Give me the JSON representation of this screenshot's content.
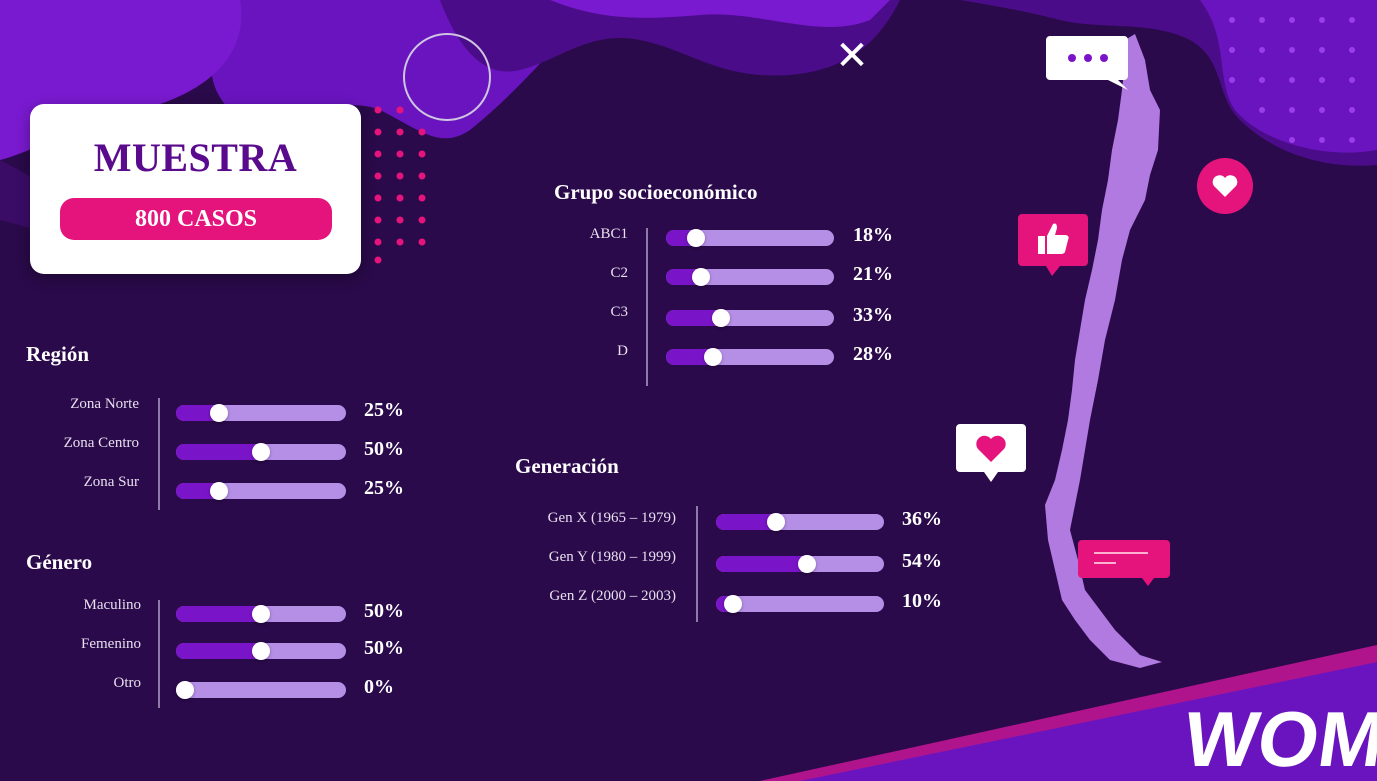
{
  "close_symbol": "✕",
  "sample": {
    "title": "MUESTRA",
    "count": "800 CASOS"
  },
  "region": {
    "title": "Región",
    "rows": [
      {
        "label": "Zona Norte",
        "pct": "25%",
        "value": 0.25
      },
      {
        "label": "Zona Centro",
        "pct": "50%",
        "value": 0.5
      },
      {
        "label": "Zona Sur",
        "pct": "25%",
        "value": 0.25
      }
    ]
  },
  "genero": {
    "title": "Género",
    "rows": [
      {
        "label": "Maculino",
        "pct": "50%",
        "value": 0.5
      },
      {
        "label": "Femenino",
        "pct": "50%",
        "value": 0.5
      },
      {
        "label": "Otro",
        "pct": "0%",
        "value": 0.0
      }
    ]
  },
  "gse": {
    "title": "Grupo socioeconómico",
    "rows": [
      {
        "label": "ABC1",
        "pct": "18%",
        "value": 0.18
      },
      {
        "label": "C2",
        "pct": "21%",
        "value": 0.21
      },
      {
        "label": "C3",
        "pct": "33%",
        "value": 0.33
      },
      {
        "label": "D",
        "pct": "28%",
        "value": 0.28
      }
    ]
  },
  "generacion": {
    "title": "Generación",
    "rows": [
      {
        "label": "Gen X (1965 – 1979)",
        "pct": "36%",
        "value": 0.36
      },
      {
        "label": "Gen Y (1980 – 1999)",
        "pct": "54%",
        "value": 0.54
      },
      {
        "label": "Gen Z (2000 – 2003)",
        "pct": "10%",
        "value": 0.1
      }
    ]
  },
  "brand": {
    "logo": "WOM"
  },
  "colors": {
    "background": "#2a0a4a",
    "accent_pink": "#e5147c",
    "bar_track": "#b58ee6",
    "bar_fill": "#7a14c8",
    "brand_purple": "#5a0a8c",
    "map_fill": "#b07ae0"
  },
  "icons": [
    "close-icon",
    "chat-dots-icon",
    "heart-icon",
    "thumbs-up-icon",
    "heart-bubble-icon",
    "message-bubble-icon",
    "chile-map-icon"
  ]
}
